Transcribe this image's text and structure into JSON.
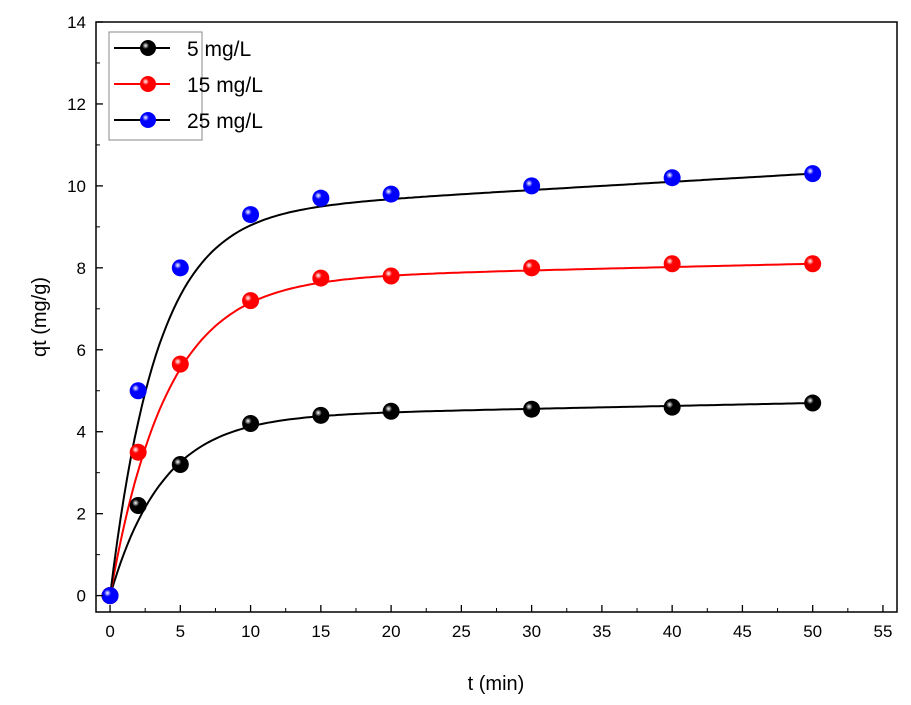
{
  "chart_data": {
    "type": "scatter",
    "title": "",
    "xlabel": "t (min)",
    "ylabel": "qt (mg/g)",
    "xlim": [
      -1,
      56
    ],
    "ylim": [
      -0.4,
      14
    ],
    "xticks": [
      0,
      5,
      10,
      15,
      20,
      25,
      30,
      35,
      40,
      45,
      50,
      55
    ],
    "yticks": [
      0,
      2,
      4,
      6,
      8,
      10,
      12,
      14
    ],
    "grid": false,
    "legend_position": "top-left",
    "series": [
      {
        "name": "5 mg/L",
        "color": "#000000",
        "line_color": "#000000",
        "x": [
          0,
          2,
          5,
          10,
          15,
          20,
          30,
          40,
          50
        ],
        "y": [
          0,
          2.2,
          3.2,
          4.2,
          4.4,
          4.5,
          4.55,
          4.6,
          4.7
        ],
        "fit": {
          "a": 4.35,
          "k": 0.27,
          "b": 0.007
        }
      },
      {
        "name": "15 mg/L",
        "color": "#ff0000",
        "line_color": "#ff0000",
        "x": [
          0,
          2,
          5,
          10,
          15,
          20,
          30,
          40,
          50
        ],
        "y": [
          0,
          3.5,
          5.65,
          7.2,
          7.75,
          7.8,
          8.0,
          8.1,
          8.1
        ],
        "fit": {
          "a": 7.7,
          "k": 0.25,
          "b": 0.008
        }
      },
      {
        "name": "25 mg/L",
        "color": "#0000ff",
        "line_color": "#000000",
        "x": [
          0,
          2,
          5,
          10,
          15,
          20,
          30,
          40,
          50
        ],
        "y": [
          0,
          5.0,
          8.0,
          9.3,
          9.7,
          9.8,
          10.0,
          10.2,
          10.3
        ],
        "fit": {
          "a": 9.3,
          "k": 0.3,
          "b": 0.02
        }
      }
    ]
  }
}
